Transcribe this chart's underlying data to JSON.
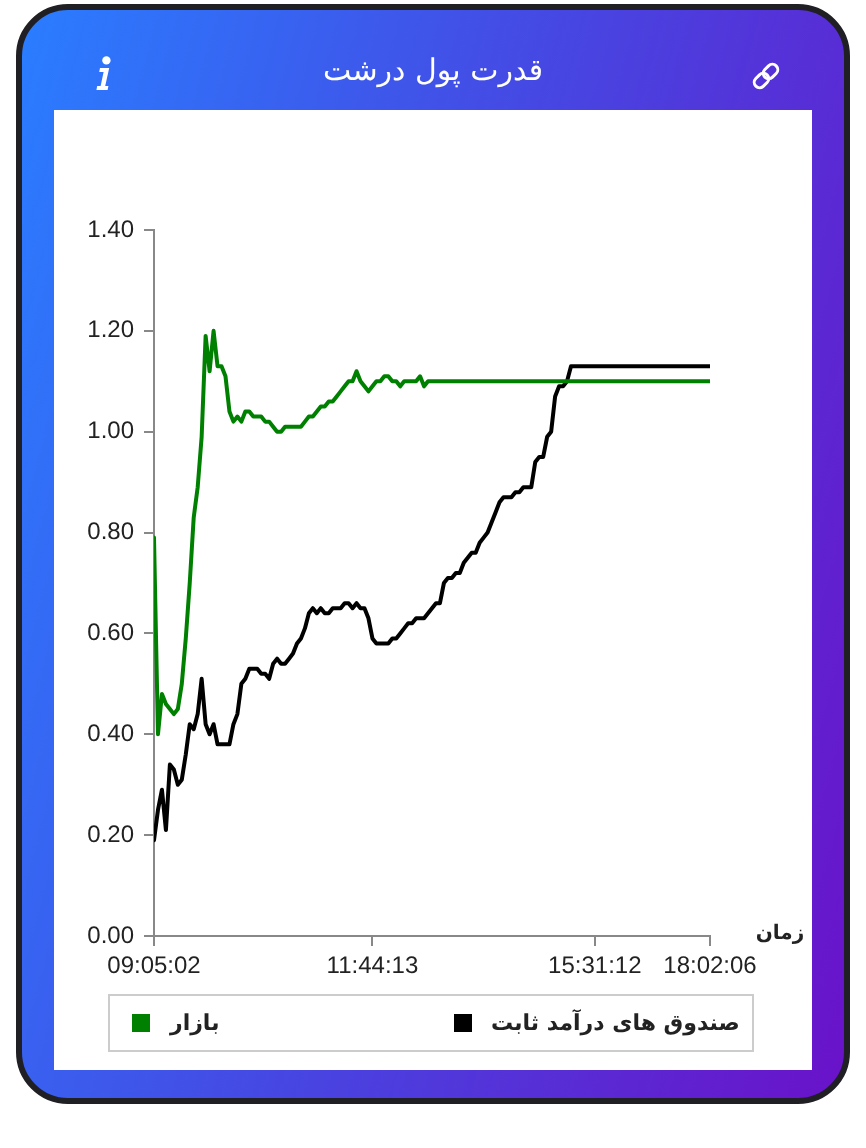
{
  "chart_data": {
    "type": "line",
    "title": "قدرت پول درشت",
    "xlabel": "زمان",
    "legend": "bottom",
    "categories": [
      "09:05:02",
      null,
      null,
      null,
      null,
      null,
      null,
      null,
      null,
      null,
      null,
      null,
      null,
      null,
      null,
      null,
      null,
      null,
      null,
      null,
      null,
      null,
      null,
      null,
      null,
      null,
      null,
      null,
      null,
      null,
      null,
      null,
      null,
      null,
      null,
      null,
      null,
      null,
      null,
      null,
      null,
      null,
      null,
      null,
      null,
      null,
      null,
      null,
      null,
      null,
      null,
      null,
      null,
      null,
      null,
      "11:44:13",
      null,
      null,
      null,
      null,
      null,
      null,
      null,
      null,
      null,
      null,
      null,
      null,
      null,
      null,
      null,
      null,
      null,
      null,
      null,
      null,
      null,
      null,
      null,
      null,
      null,
      null,
      null,
      null,
      null,
      null,
      null,
      null,
      null,
      null,
      null,
      null,
      null,
      null,
      null,
      null,
      null,
      null,
      null,
      null,
      null,
      null,
      null,
      null,
      null,
      null,
      null,
      null,
      null,
      null,
      null,
      "15:31:12",
      null,
      null,
      null,
      null,
      null,
      null,
      null,
      null,
      null,
      null,
      null,
      null,
      null,
      null,
      null,
      null,
      null,
      null,
      null,
      null,
      null,
      null,
      null,
      null,
      null,
      null,
      null,
      null,
      "18:02:06"
    ],
    "series": [
      {
        "name": "بازار",
        "color": "#008000",
        "values": [
          0.79,
          0.4,
          0.48,
          0.46,
          0.45,
          0.44,
          0.45,
          0.5,
          0.59,
          0.7,
          0.83,
          0.89,
          0.99,
          1.19,
          1.12,
          1.2,
          1.13,
          1.13,
          1.11,
          1.04,
          1.02,
          1.03,
          1.02,
          1.04,
          1.04,
          1.03,
          1.03,
          1.03,
          1.02,
          1.02,
          1.01,
          1.0,
          1.0,
          1.01,
          1.01,
          1.01,
          1.01,
          1.01,
          1.02,
          1.03,
          1.03,
          1.04,
          1.05,
          1.05,
          1.06,
          1.06,
          1.07,
          1.08,
          1.09,
          1.1,
          1.1,
          1.12,
          1.1,
          1.09,
          1.08,
          1.09,
          1.1,
          1.1,
          1.11,
          1.11,
          1.1,
          1.1,
          1.09,
          1.1,
          1.1,
          1.1,
          1.1,
          1.11,
          1.09,
          1.1,
          1.1,
          1.1,
          1.1,
          1.1,
          1.1,
          1.1,
          1.1,
          1.1,
          1.1,
          1.1,
          1.1,
          1.1,
          1.1,
          1.1,
          1.1,
          1.1,
          1.1,
          1.1,
          1.1,
          1.1,
          1.1,
          1.1,
          1.1,
          1.1,
          1.1,
          1.1,
          1.1,
          1.1,
          1.1,
          1.1,
          1.1,
          1.1,
          1.1,
          1.1,
          1.1,
          1.1,
          1.1,
          1.1,
          1.1,
          1.1,
          1.1,
          1.1,
          1.1,
          1.1,
          1.1,
          1.1,
          1.1,
          1.1,
          1.1,
          1.1,
          1.1,
          1.1,
          1.1,
          1.1,
          1.1,
          1.1,
          1.1,
          1.1,
          1.1,
          1.1,
          1.1,
          1.1,
          1.1,
          1.1,
          1.1,
          1.1,
          1.1,
          1.1,
          1.1,
          1.1,
          1.1
        ]
      },
      {
        "name": "صندوق های درآمد ثابت",
        "color": "#000000",
        "values": [
          0.19,
          0.25,
          0.29,
          0.21,
          0.34,
          0.33,
          0.3,
          0.31,
          0.36,
          0.42,
          0.41,
          0.44,
          0.51,
          0.42,
          0.4,
          0.42,
          0.38,
          0.38,
          0.38,
          0.38,
          0.42,
          0.44,
          0.5,
          0.51,
          0.53,
          0.53,
          0.53,
          0.52,
          0.52,
          0.51,
          0.54,
          0.55,
          0.54,
          0.54,
          0.55,
          0.56,
          0.58,
          0.59,
          0.61,
          0.64,
          0.65,
          0.64,
          0.65,
          0.64,
          0.64,
          0.65,
          0.65,
          0.65,
          0.66,
          0.66,
          0.65,
          0.66,
          0.65,
          0.65,
          0.63,
          0.59,
          0.58,
          0.58,
          0.58,
          0.58,
          0.59,
          0.59,
          0.6,
          0.61,
          0.62,
          0.62,
          0.63,
          0.63,
          0.63,
          0.64,
          0.65,
          0.66,
          0.66,
          0.7,
          0.71,
          0.71,
          0.72,
          0.72,
          0.74,
          0.75,
          0.76,
          0.76,
          0.78,
          0.79,
          0.8,
          0.82,
          0.84,
          0.86,
          0.87,
          0.87,
          0.87,
          0.88,
          0.88,
          0.89,
          0.89,
          0.89,
          0.94,
          0.95,
          0.95,
          0.99,
          1.0,
          1.07,
          1.09,
          1.09,
          1.1,
          1.13,
          1.13,
          1.13,
          1.13,
          1.13,
          1.13,
          1.13,
          1.13,
          1.13,
          1.13,
          1.13,
          1.13,
          1.13,
          1.13,
          1.13,
          1.13,
          1.13,
          1.13,
          1.13,
          1.13,
          1.13,
          1.13,
          1.13,
          1.13,
          1.13,
          1.13,
          1.13,
          1.13,
          1.13,
          1.13,
          1.13,
          1.13,
          1.13,
          1.13,
          1.13,
          1.13
        ]
      }
    ],
    "ylim": [
      0,
      1.4
    ],
    "yticks": [
      {
        "value": 0,
        "label": "0.00"
      },
      {
        "value": 0.2,
        "label": "0.20"
      },
      {
        "value": 0.4,
        "label": "0.40"
      },
      {
        "value": 0.6,
        "label": "0.60"
      },
      {
        "value": 0.8,
        "label": "0.80"
      },
      {
        "value": 1,
        "label": "1.00"
      },
      {
        "value": 1.2,
        "label": "1.20"
      },
      {
        "value": 1.4,
        "label": "1.40"
      }
    ]
  }
}
